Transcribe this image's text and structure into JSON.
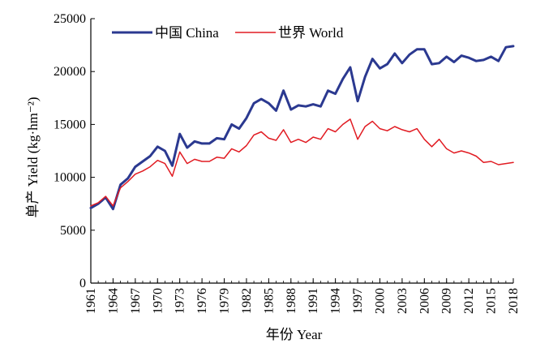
{
  "chart_data": {
    "type": "line",
    "xlabel": "年份 Year",
    "ylabel": "单产 Yield (kg·hm⁻²)",
    "xlim": [
      1961,
      2018
    ],
    "ylim": [
      0,
      25000
    ],
    "yticks": [
      0,
      5000,
      10000,
      15000,
      20000,
      25000
    ],
    "xticks": [
      1961,
      1964,
      1967,
      1970,
      1973,
      1976,
      1979,
      1982,
      1985,
      1988,
      1991,
      1994,
      1997,
      2000,
      2003,
      2006,
      2009,
      2012,
      2015,
      2018
    ],
    "grid": false,
    "legend_position": "top-left",
    "x": [
      1961,
      1962,
      1963,
      1964,
      1965,
      1966,
      1967,
      1968,
      1969,
      1970,
      1971,
      1972,
      1973,
      1974,
      1975,
      1976,
      1977,
      1978,
      1979,
      1980,
      1981,
      1982,
      1983,
      1984,
      1985,
      1986,
      1987,
      1988,
      1989,
      1990,
      1991,
      1992,
      1993,
      1994,
      1995,
      1996,
      1997,
      1998,
      1999,
      2000,
      2001,
      2002,
      2003,
      2004,
      2005,
      2006,
      2007,
      2008,
      2009,
      2010,
      2011,
      2012,
      2013,
      2014,
      2015,
      2016,
      2017,
      2018
    ],
    "series": [
      {
        "name": "中国 China",
        "color": "#2b3990",
        "values": [
          7100,
          7500,
          8100,
          7000,
          9300,
          9900,
          11000,
          11500,
          12000,
          12900,
          12500,
          11100,
          14100,
          12800,
          13400,
          13200,
          13200,
          13700,
          13600,
          15000,
          14600,
          15600,
          17000,
          17400,
          17000,
          16300,
          18200,
          16400,
          16800,
          16700,
          16900,
          16700,
          18200,
          17900,
          19300,
          20400,
          17200,
          19500,
          21200,
          20300,
          20700,
          21700,
          20800,
          21600,
          22100,
          22100,
          20700,
          20800,
          21400,
          20900,
          21500,
          21300,
          21000,
          21100,
          21400,
          21000,
          22300,
          22400
        ],
        "width": 3
      },
      {
        "name": "世界 World",
        "color": "#e11b22",
        "values": [
          7300,
          7600,
          8200,
          7300,
          9000,
          9600,
          10300,
          10600,
          11000,
          11600,
          11300,
          10100,
          12400,
          11300,
          11700,
          11500,
          11500,
          11900,
          11800,
          12700,
          12400,
          13000,
          14000,
          14300,
          13700,
          13500,
          14500,
          13300,
          13600,
          13300,
          13800,
          13600,
          14600,
          14300,
          15000,
          15500,
          13600,
          14800,
          15300,
          14600,
          14400,
          14800,
          14500,
          14300,
          14600,
          13600,
          12900,
          13600,
          12700,
          12300,
          12500,
          12300,
          12000,
          11400,
          11500,
          11200,
          11300,
          11400
        ],
        "width": 1.5
      }
    ]
  }
}
